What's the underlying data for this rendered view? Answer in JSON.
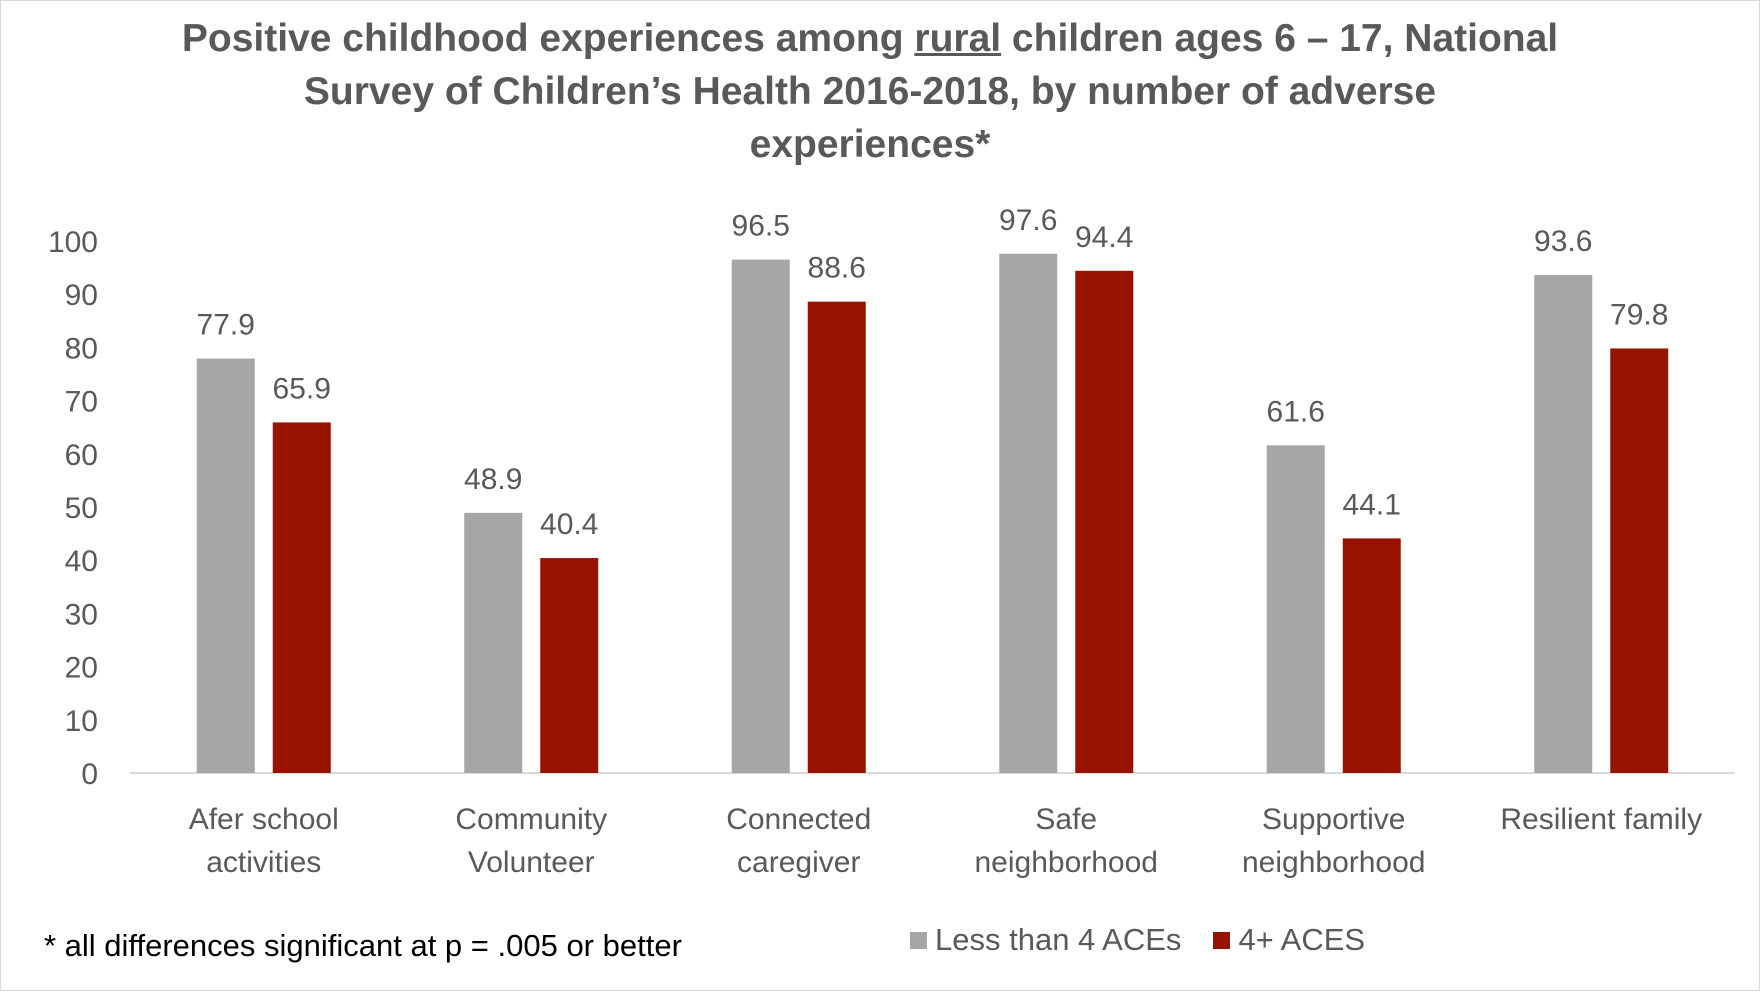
{
  "chart_data": {
    "type": "bar",
    "title_parts": [
      "Positive childhood experiences among ",
      "rural",
      " children ages 6 – 17, National",
      "Survey of Children’s Health 2016-2018, by number of adverse",
      "experiences*"
    ],
    "categories": [
      [
        "Afer school",
        "activities"
      ],
      [
        "Community",
        "Volunteer"
      ],
      [
        "Connected",
        "caregiver"
      ],
      [
        "Safe",
        "neighborhood"
      ],
      [
        "Supportive",
        "neighborhood"
      ],
      [
        "Resilient family"
      ]
    ],
    "series": [
      {
        "name": "Less than 4 ACEs",
        "color": "#a6a6a6",
        "values": [
          77.9,
          48.9,
          96.5,
          97.6,
          61.6,
          93.6
        ]
      },
      {
        "name": "4+ ACES",
        "color": "#981200",
        "values": [
          65.9,
          40.4,
          88.6,
          94.4,
          44.1,
          79.8
        ]
      }
    ],
    "ylim": [
      0,
      100
    ],
    "yticks": [
      "0",
      "10",
      "20",
      "30",
      "40",
      "50",
      "60",
      "70",
      "80",
      "90",
      "100"
    ],
    "data_labels": [
      [
        "77.9",
        "48.9",
        "96.5",
        "97.6",
        "61.6",
        "93.6"
      ],
      [
        "65.9",
        "40.4",
        "88.6",
        "94.4",
        "44.1",
        "79.8"
      ]
    ],
    "footnote": "* all differences significant at p = .005 or better",
    "legend_position": "bottom-right",
    "grid": false
  }
}
